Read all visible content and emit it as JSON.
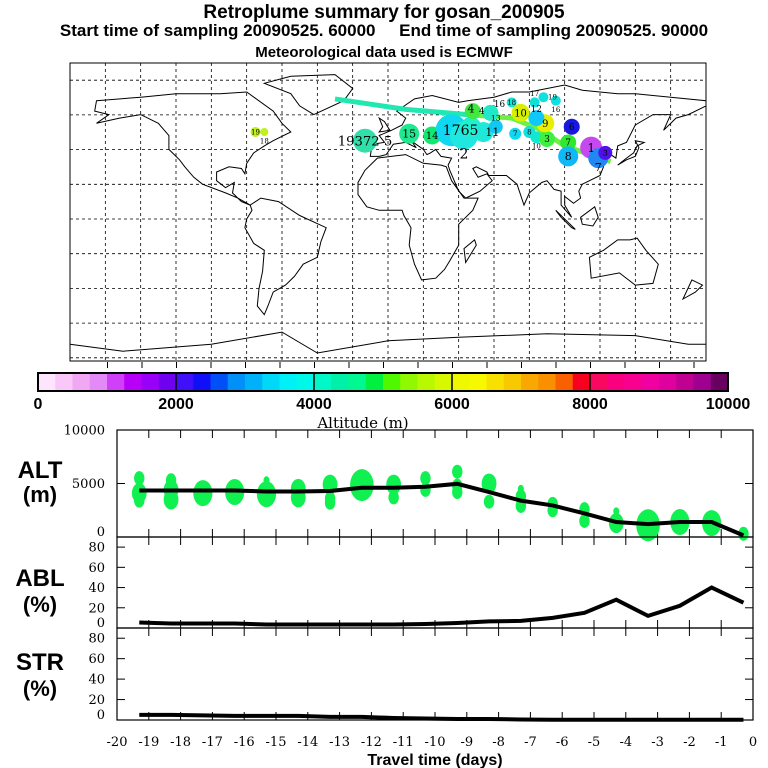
{
  "header": {
    "title": "Retroplume summary for gosan_200905",
    "sampling": "Start time of sampling 20090525. 60000     End time of sampling 20090525. 90000",
    "met": "Meteorological data used is ECMWF"
  },
  "colorbar": {
    "label": "Altitude (m)",
    "ticks": [
      "0",
      "2000",
      "4000",
      "6000",
      "8000",
      "10000"
    ],
    "range": [
      0,
      10000
    ],
    "colors": [
      "#fde6fd",
      "#f9c8f9",
      "#f0a8f5",
      "#e48af7",
      "#d040f8",
      "#b800f8",
      "#9800f8",
      "#7000f0",
      "#4010f8",
      "#1010f8",
      "#0050f8",
      "#0090f8",
      "#00b0f8",
      "#00d8f8",
      "#00f0f8",
      "#00f8e8",
      "#00f8c8",
      "#00f0a8",
      "#00f890",
      "#00f040",
      "#50f800",
      "#90f800",
      "#b8f800",
      "#d8f800",
      "#f0f800",
      "#f8f800",
      "#f8e000",
      "#f8c800",
      "#f8a800",
      "#f89000",
      "#f86000",
      "#f80020",
      "#f80860",
      "#f80080",
      "#f80090",
      "#f000a0",
      "#e000a0",
      "#c00090",
      "#a00090",
      "#680060"
    ]
  },
  "map": {
    "markers": [
      {
        "lon": -13,
        "lat": 45,
        "r": 12,
        "color": "#30e0a8",
        "label": "19372 5"
      },
      {
        "lon": 12,
        "lat": 49,
        "r": 10,
        "color": "#20e890",
        "label": "15"
      },
      {
        "lon": 25,
        "lat": 48,
        "r": 9,
        "color": "#10e870",
        "label": "14"
      },
      {
        "lon": 36,
        "lat": 51,
        "r": 16,
        "color": "#10d8f0",
        "label": "1765"
      },
      {
        "lon": 43,
        "lat": 48,
        "r": 14,
        "color": "#20e8e0",
        "label": "2"
      },
      {
        "lon": 47,
        "lat": 53,
        "r": 10,
        "color": "#20f0d0",
        "label": "4"
      },
      {
        "lon": 54,
        "lat": 50,
        "r": 10,
        "color": "#20e8d8",
        "label": "11"
      },
      {
        "lon": 61,
        "lat": 53,
        "r": 7,
        "color": "#10c8f0",
        "label": "13"
      },
      {
        "lon": 72,
        "lat": 49,
        "r": 6,
        "color": "#10d8f0",
        "label": "7"
      },
      {
        "lon": 80,
        "lat": 50,
        "r": 6,
        "color": "#10e0e0",
        "label": "8"
      },
      {
        "lon": 84,
        "lat": 47,
        "r": 6,
        "color": "#10e8d0",
        "label": "10"
      },
      {
        "lon": 90,
        "lat": 46,
        "r": 8,
        "color": "#40f040",
        "label": "3"
      },
      {
        "lon": 89,
        "lat": 55,
        "r": 9,
        "color": "#e8f000",
        "label": "9"
      },
      {
        "lon": 75,
        "lat": 61,
        "r": 9,
        "color": "#d8f000",
        "label": "10"
      },
      {
        "lon": 84,
        "lat": 58,
        "r": 8,
        "color": "#10c8f8",
        "label": "12"
      },
      {
        "lon": 104,
        "lat": 53,
        "r": 8,
        "color": "#1818e0",
        "label": "6"
      },
      {
        "lon": 70,
        "lat": 67,
        "r": 5,
        "color": "#10e8d8",
        "label": "18"
      },
      {
        "lon": 83,
        "lat": 67,
        "r": 5,
        "color": "#10e0d8",
        "label": "17"
      },
      {
        "lon": 88,
        "lat": 70,
        "r": 5,
        "color": "#10e0e0",
        "label": "19"
      },
      {
        "lon": 95,
        "lat": 68,
        "r": 5,
        "color": "#10e0e0",
        "label": "16"
      },
      {
        "lon": 48,
        "lat": 62,
        "r": 8,
        "color": "#40e840",
        "label": "4"
      },
      {
        "lon": 58,
        "lat": 61,
        "r": 8,
        "color": "#20e8c8",
        "label": "16"
      },
      {
        "lon": 102,
        "lat": 44,
        "r": 8,
        "color": "#30e830",
        "label": "7"
      },
      {
        "lon": 102,
        "lat": 36,
        "r": 10,
        "color": "#10b8f8",
        "label": "8"
      },
      {
        "lon": 115,
        "lat": 41,
        "r": 11,
        "color": "#c848f0",
        "label": "1"
      },
      {
        "lon": 119,
        "lat": 35,
        "r": 10,
        "color": "#2088f0",
        "label": "7"
      },
      {
        "lon": 123,
        "lat": 38,
        "r": 7,
        "color": "#5010e8",
        "label": "3"
      },
      {
        "lon": -75,
        "lat": 50,
        "r": 5,
        "color": "#c0f020",
        "label": "19"
      },
      {
        "lon": -70,
        "lat": 50,
        "r": 4,
        "color": "#c0f020",
        "label": "18"
      }
    ],
    "tracks": [
      {
        "color": "#20e8b0",
        "points": [
          [
            -30,
            69
          ],
          [
            10,
            63
          ],
          [
            45,
            60
          ]
        ]
      },
      {
        "color": "#70f040",
        "points": [
          [
            45,
            60
          ],
          [
            70,
            58
          ],
          [
            85,
            52
          ],
          [
            100,
            42
          ],
          [
            126,
            33
          ]
        ]
      }
    ]
  },
  "chart_data": [
    {
      "type": "line",
      "name": "ALT",
      "title": "ALT",
      "ylabel": "(m)",
      "ylim": [
        0,
        10000
      ],
      "yticks": [
        "0",
        "5000",
        "10000"
      ],
      "x": [
        -19.3,
        -18.3,
        -17.3,
        -16.3,
        -15.3,
        -14.3,
        -13.3,
        -12.3,
        -11.3,
        -10.3,
        -9.3,
        -8.3,
        -7.3,
        -6.3,
        -5.3,
        -4.3,
        -3.3,
        -2.3,
        -1.3,
        -0.3
      ],
      "values": [
        4350,
        4350,
        4350,
        4350,
        4250,
        4250,
        4300,
        4600,
        4600,
        4700,
        4970,
        4200,
        3400,
        2950,
        2200,
        1400,
        1200,
        1400,
        1400,
        150
      ],
      "clusters": [
        [
          -19.3,
          5500,
          1
        ],
        [
          -19.3,
          4100,
          2
        ],
        [
          -19.3,
          3400,
          1
        ],
        [
          -18.3,
          5300,
          1
        ],
        [
          -18.3,
          4400,
          2
        ],
        [
          -18.3,
          3500,
          2
        ],
        [
          -17.3,
          4100,
          3
        ],
        [
          -16.3,
          4200,
          3
        ],
        [
          -15.3,
          4000,
          3
        ],
        [
          -15.3,
          5300,
          0
        ],
        [
          -14.3,
          4500,
          2
        ],
        [
          -14.3,
          3700,
          2
        ],
        [
          -13.3,
          4900,
          2
        ],
        [
          -13.3,
          3600,
          1
        ],
        [
          -13.3,
          3200,
          1
        ],
        [
          -12.3,
          4850,
          4
        ],
        [
          -11.3,
          4900,
          2
        ],
        [
          -11.3,
          3700,
          1
        ],
        [
          -10.3,
          5500,
          1
        ],
        [
          -10.3,
          4400,
          1
        ],
        [
          -9.3,
          6100,
          1
        ],
        [
          -9.3,
          4800,
          1
        ],
        [
          -9.3,
          4200,
          1
        ],
        [
          -8.3,
          5000,
          2
        ],
        [
          -8.3,
          3300,
          1
        ],
        [
          -7.3,
          4500,
          0
        ],
        [
          -7.3,
          3800,
          1
        ],
        [
          -7.3,
          2900,
          1
        ],
        [
          -6.3,
          3100,
          1
        ],
        [
          -6.3,
          2500,
          1
        ],
        [
          -5.3,
          2600,
          1
        ],
        [
          -5.3,
          1500,
          1
        ],
        [
          -4.3,
          2400,
          0
        ],
        [
          -4.3,
          1300,
          2
        ],
        [
          -3.3,
          1100,
          4
        ],
        [
          -2.3,
          1400,
          3
        ],
        [
          -1.3,
          1300,
          3
        ],
        [
          -0.3,
          300,
          1
        ]
      ],
      "cluster_color": "#10f050"
    },
    {
      "type": "line",
      "name": "ABL",
      "title": "ABL",
      "ylabel": "(%)",
      "ylim": [
        0,
        90
      ],
      "yticks": [
        "0",
        "20",
        "40",
        "60",
        "80"
      ],
      "x": [
        -19.3,
        -18.3,
        -17.3,
        -16.3,
        -15.3,
        -14.3,
        -13.3,
        -12.3,
        -11.3,
        -10.3,
        -9.3,
        -8.3,
        -7.3,
        -6.3,
        -5.3,
        -4.3,
        -3.3,
        -2.3,
        -1.3,
        -0.3
      ],
      "values": [
        5.5,
        4.5,
        4.5,
        4.5,
        3.5,
        3.5,
        3.5,
        3.5,
        3.5,
        4,
        5,
        6.5,
        7,
        10,
        15,
        28,
        12,
        22,
        40,
        25
      ]
    },
    {
      "type": "line",
      "name": "STR",
      "title": "STR",
      "ylabel": "(%)",
      "ylim": [
        0,
        90
      ],
      "yticks": [
        "0",
        "20",
        "40",
        "60",
        "80"
      ],
      "x": [
        -19.3,
        -18.3,
        -17.3,
        -16.3,
        -15.3,
        -14.3,
        -13.3,
        -12.3,
        -11.3,
        -10.3,
        -9.3,
        -8.3,
        -7.3,
        -6.3,
        -5.3,
        -4.3,
        -3.3,
        -2.3,
        -1.3,
        -0.3
      ],
      "values": [
        5,
        5,
        4.5,
        4,
        4,
        4,
        3,
        3,
        2,
        1.5,
        1,
        1,
        0.5,
        0.3,
        0.2,
        0.2,
        0.2,
        0.2,
        0.2,
        0.2
      ]
    }
  ],
  "xaxis": {
    "label": "Travel time (days)",
    "xlim": [
      -20,
      0
    ],
    "ticks": [
      "-20",
      "-19",
      "-18",
      "-17",
      "-16",
      "-15",
      "-14",
      "-13",
      "-12",
      "-11",
      "-10",
      "-9",
      "-8",
      "-7",
      "-6",
      "-5",
      "-4",
      "-3",
      "-2",
      "-1",
      "0"
    ]
  }
}
